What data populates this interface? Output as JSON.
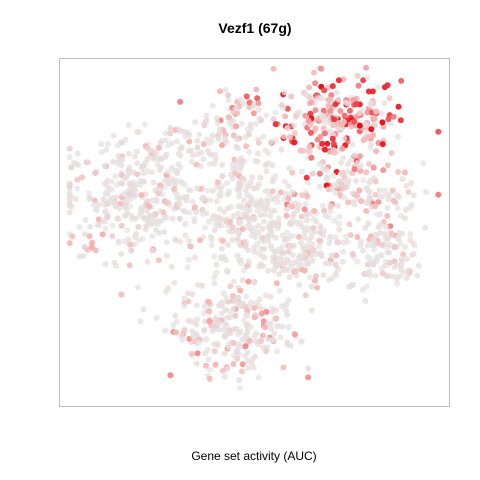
{
  "chart_data": {
    "type": "scatter",
    "title": "Vezf1 (67g)",
    "xlabel": "Gene set activity (AUC)",
    "ylabel": "",
    "grid": false,
    "axes_ticks": false,
    "colors": {
      "low": "#e4e4e4",
      "mid": "#f7b5b5",
      "high": "#e8000b",
      "frame": "#bdbdbd"
    },
    "clusters": [
      {
        "name": "top-right-group",
        "cx": 0.72,
        "cy": 0.82,
        "sx": 0.08,
        "sy": 0.07,
        "n": 260,
        "activity": 0.72
      },
      {
        "name": "top-left-group",
        "cx": 0.45,
        "cy": 0.84,
        "sx": 0.05,
        "sy": 0.04,
        "n": 60,
        "activity": 0.42
      },
      {
        "name": "upper-center-strip",
        "cx": 0.32,
        "cy": 0.78,
        "sx": 0.08,
        "sy": 0.03,
        "n": 55,
        "activity": 0.2
      },
      {
        "name": "left-large-group",
        "cx": 0.2,
        "cy": 0.6,
        "sx": 0.1,
        "sy": 0.09,
        "n": 360,
        "activity": 0.18
      },
      {
        "name": "center-group",
        "cx": 0.48,
        "cy": 0.55,
        "sx": 0.06,
        "sy": 0.1,
        "n": 260,
        "activity": 0.12
      },
      {
        "name": "right-arm",
        "cx": 0.76,
        "cy": 0.62,
        "sx": 0.09,
        "sy": 0.04,
        "n": 120,
        "activity": 0.32
      },
      {
        "name": "right-lower-group",
        "cx": 0.84,
        "cy": 0.45,
        "sx": 0.05,
        "sy": 0.07,
        "n": 120,
        "activity": 0.2
      },
      {
        "name": "center-right-group",
        "cx": 0.62,
        "cy": 0.45,
        "sx": 0.06,
        "sy": 0.06,
        "n": 170,
        "activity": 0.18
      },
      {
        "name": "bottom-group",
        "cx": 0.45,
        "cy": 0.22,
        "sx": 0.08,
        "sy": 0.07,
        "n": 260,
        "activity": 0.28
      }
    ]
  }
}
